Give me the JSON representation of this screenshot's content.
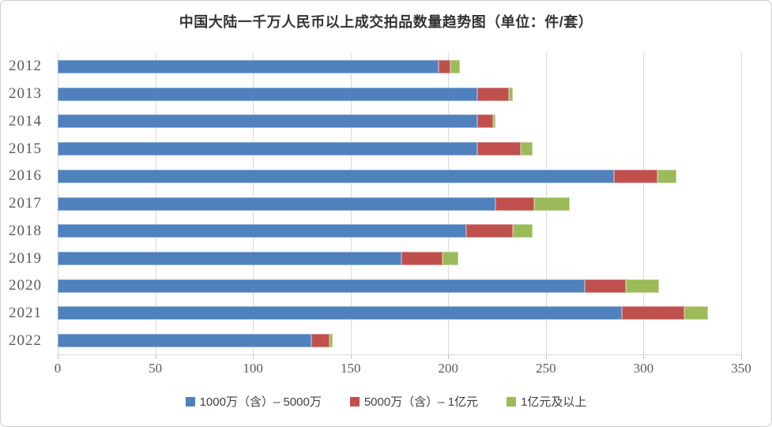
{
  "title": "中国大陆一千万人民币以上成交拍品数量趋势图（单位：件/套）",
  "chart_data": {
    "type": "bar",
    "orientation": "horizontal",
    "stacked": true,
    "title": "中国大陆一千万人民币以上成交拍品数量趋势图（单位：件/套）",
    "categories": [
      "2012",
      "2013",
      "2014",
      "2015",
      "2016",
      "2017",
      "2018",
      "2019",
      "2020",
      "2021",
      "2022"
    ],
    "series": [
      {
        "name": "1000万（含）– 5000万",
        "color": "#4F81BD",
        "values": [
          195,
          215,
          215,
          215,
          285,
          224,
          209,
          176,
          270,
          289,
          130
        ]
      },
      {
        "name": "5000万（含）– 1亿元",
        "color": "#C0504D",
        "values": [
          6,
          16,
          8,
          22,
          22,
          20,
          24,
          21,
          21,
          32,
          9
        ]
      },
      {
        "name": "1亿元及以上",
        "color": "#9BBB59",
        "values": [
          5,
          2,
          1,
          6,
          10,
          18,
          10,
          8,
          17,
          12,
          2
        ]
      }
    ],
    "totals": [
      206,
      233,
      224,
      243,
      317,
      262,
      243,
      205,
      308,
      333,
      141
    ],
    "xlabel": "",
    "ylabel": "",
    "xlim": [
      0,
      350
    ],
    "x_ticks": [
      0,
      50,
      100,
      150,
      200,
      250,
      300,
      350
    ],
    "grid": "vertical",
    "legend_position": "bottom"
  },
  "colors": {
    "grid": "#d9d9d9",
    "axis_text": "#595959",
    "title_text": "#333333",
    "frame_border": "#cccccc",
    "background": "#ffffff"
  }
}
